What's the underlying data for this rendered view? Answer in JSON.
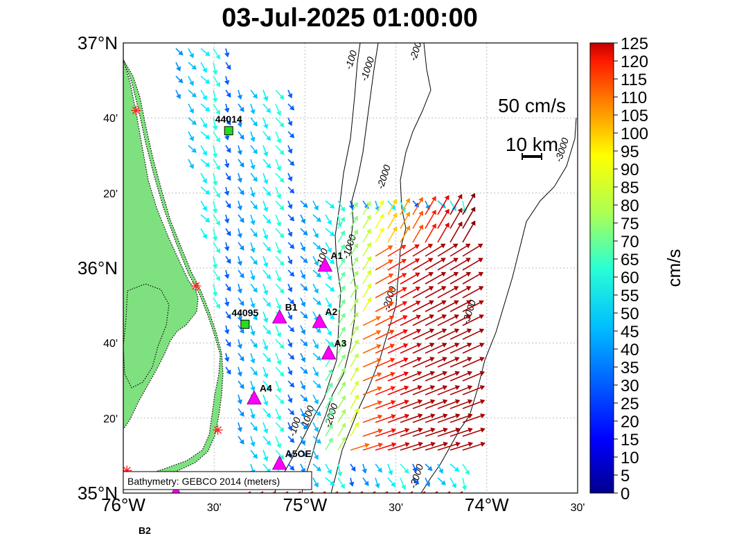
{
  "title": "03-Jul-2025 01:00:00",
  "map": {
    "lon_range": [
      -76.0,
      -73.5
    ],
    "lat_range": [
      35.0,
      37.0
    ],
    "x_ticks": [
      {
        "lon": -76.0,
        "label": "76°W",
        "major": true
      },
      {
        "lon": -75.5,
        "label": "30'",
        "major": false
      },
      {
        "lon": -75.0,
        "label": "75°W",
        "major": true
      },
      {
        "lon": -74.5,
        "label": "30'",
        "major": false
      },
      {
        "lon": -74.0,
        "label": "74°W",
        "major": true
      },
      {
        "lon": -73.5,
        "label": "30'",
        "major": false
      }
    ],
    "y_ticks": [
      {
        "lat": 35.0,
        "label": "35°N",
        "major": true
      },
      {
        "lat": 35.333,
        "label": "20'",
        "major": false
      },
      {
        "lat": 35.667,
        "label": "40'",
        "major": false
      },
      {
        "lat": 36.0,
        "label": "36°N",
        "major": true
      },
      {
        "lat": 36.333,
        "label": "20'",
        "major": false
      },
      {
        "lat": 36.667,
        "label": "40'",
        "major": false
      },
      {
        "lat": 37.0,
        "label": "37°N",
        "major": true
      }
    ],
    "grid": true,
    "land_color": "#7fe07f",
    "ocean_color": "#ffffff"
  },
  "scale": {
    "velocity_label": "50 cm/s",
    "distance_label": "10 km"
  },
  "attribution": "Bathymetry: GEBCO 2014 (meters)",
  "colorbar": {
    "label": "cm/s",
    "min": 0,
    "max": 125,
    "tick_labels": [
      "0",
      "5",
      "10",
      "15",
      "20",
      "25",
      "30",
      "35",
      "40",
      "45",
      "50",
      "55",
      "60",
      "65",
      "70",
      "75",
      "80",
      "85",
      "90",
      "95",
      "100",
      "105",
      "110",
      "115",
      "120",
      "125"
    ]
  },
  "stations": [
    {
      "name": "44014",
      "type": "buoy",
      "lon": -75.42,
      "lat": 36.61
    },
    {
      "name": "44095",
      "type": "buoy",
      "lon": -75.33,
      "lat": 35.75
    },
    {
      "name": "B1",
      "type": "mooring",
      "lon": -75.14,
      "lat": 35.78
    },
    {
      "name": "A1",
      "type": "mooring",
      "lon": -74.89,
      "lat": 36.01
    },
    {
      "name": "A2",
      "type": "mooring",
      "lon": -74.92,
      "lat": 35.76
    },
    {
      "name": "A3",
      "type": "mooring",
      "lon": -74.87,
      "lat": 35.62
    },
    {
      "name": "A4",
      "type": "mooring",
      "lon": -75.28,
      "lat": 35.42
    },
    {
      "name": "A5OE",
      "type": "mooring",
      "lon": -75.14,
      "lat": 35.13
    },
    {
      "name": "B2",
      "type": "mooring",
      "lon": -75.71,
      "lat": 35.0
    }
  ],
  "coastal_markers": [
    {
      "lon": -75.93,
      "lat": 36.7
    },
    {
      "lon": -75.6,
      "lat": 35.92
    },
    {
      "lon": -75.48,
      "lat": 35.28
    },
    {
      "lon": -75.98,
      "lat": 35.1
    }
  ],
  "contour_labels": [
    {
      "text": "-100",
      "lon": -74.73,
      "lat": 36.92
    },
    {
      "text": "-1000",
      "lon": -74.64,
      "lat": 36.88
    },
    {
      "text": "-2000",
      "lon": -74.37,
      "lat": 36.97
    },
    {
      "text": "-3000",
      "lon": -73.57,
      "lat": 36.52
    },
    {
      "text": "-2000",
      "lon": -74.55,
      "lat": 36.4
    },
    {
      "text": "-1000",
      "lon": -74.74,
      "lat": 36.09
    },
    {
      "text": "-100",
      "lon": -74.89,
      "lat": 36.04
    },
    {
      "text": "-2000",
      "lon": -74.52,
      "lat": 35.86
    },
    {
      "text": "-3000",
      "lon": -74.08,
      "lat": 35.8
    },
    {
      "text": "-1000",
      "lon": -74.97,
      "lat": 35.33
    },
    {
      "text": "-2000",
      "lon": -74.84,
      "lat": 35.34
    },
    {
      "text": "-100",
      "lon": -75.04,
      "lat": 35.29
    },
    {
      "text": "-3000",
      "lon": -74.37,
      "lat": 35.07
    }
  ]
}
